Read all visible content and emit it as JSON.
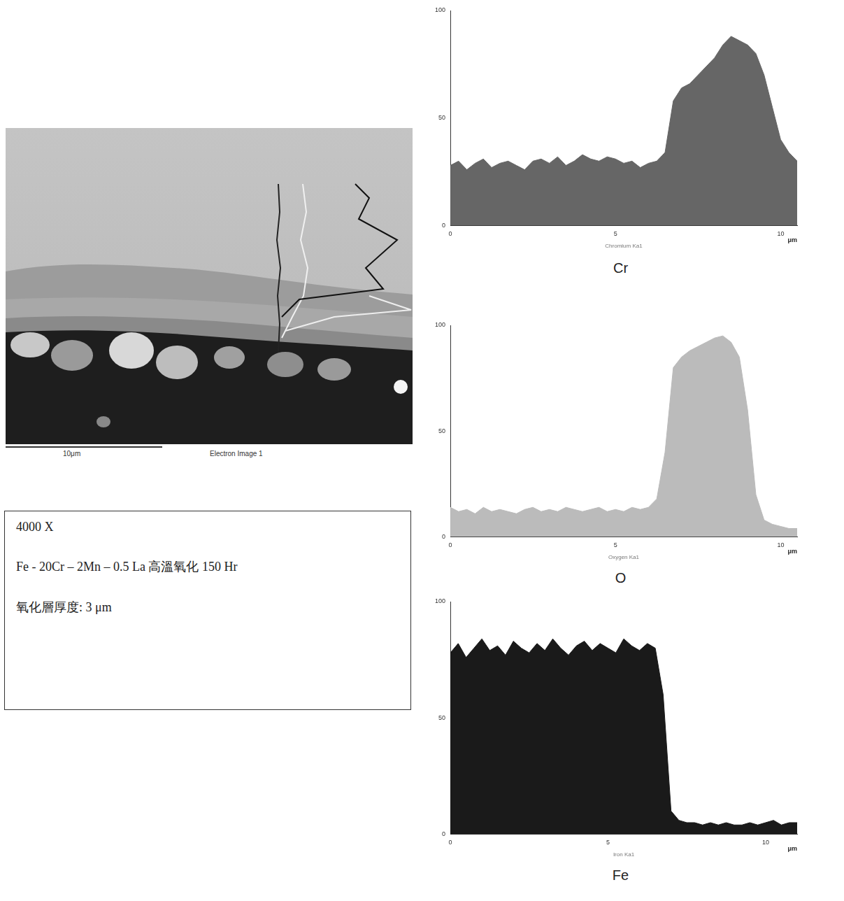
{
  "image": {
    "scale_bar": "10μm",
    "caption": "Electron Image 1"
  },
  "info": {
    "lines": [
      "4000 X",
      "Fe - 20Cr – 2Mn – 0.5 La 高溫氧化 150 Hr",
      "氧化層厚度: 3 μm"
    ]
  },
  "chart_data": [
    {
      "type": "area",
      "title": "Cr",
      "x_label": "Chromium Ka1",
      "x_unit": "μm",
      "color": "#666666",
      "grid": false,
      "x": [
        0,
        0.25,
        0.5,
        0.75,
        1,
        1.25,
        1.5,
        1.75,
        2,
        2.25,
        2.5,
        2.75,
        3,
        3.25,
        3.5,
        3.75,
        4,
        4.25,
        4.5,
        4.75,
        5,
        5.25,
        5.5,
        5.75,
        6,
        6.25,
        6.5,
        6.75,
        7,
        7.25,
        7.5,
        7.75,
        8,
        8.25,
        8.5,
        8.75,
        9,
        9.25,
        9.5,
        9.75,
        10,
        10.25,
        10.5
      ],
      "values": [
        28,
        30,
        26,
        29,
        31,
        27,
        29,
        30,
        28,
        26,
        30,
        31,
        29,
        32,
        28,
        30,
        33,
        31,
        30,
        32,
        31,
        29,
        30,
        27,
        29,
        30,
        34,
        58,
        64,
        66,
        70,
        74,
        78,
        84,
        88,
        86,
        84,
        80,
        70,
        55,
        40,
        34,
        30
      ],
      "xlim": [
        0,
        10.5
      ],
      "xticks": [
        0,
        5,
        10
      ],
      "ylim": [
        0,
        100
      ],
      "yticks": [
        0,
        50,
        100
      ]
    },
    {
      "type": "area",
      "title": "O",
      "x_label": "Oxygen Ka1",
      "x_unit": "μm",
      "color": "#bbbbbb",
      "grid": false,
      "x": [
        0,
        0.25,
        0.5,
        0.75,
        1,
        1.25,
        1.5,
        1.75,
        2,
        2.25,
        2.5,
        2.75,
        3,
        3.25,
        3.5,
        3.75,
        4,
        4.25,
        4.5,
        4.75,
        5,
        5.25,
        5.5,
        5.75,
        6,
        6.25,
        6.5,
        6.75,
        7,
        7.25,
        7.5,
        7.75,
        8,
        8.25,
        8.5,
        8.75,
        9,
        9.25,
        9.5,
        9.75,
        10,
        10.25,
        10.5
      ],
      "values": [
        14,
        12,
        13,
        11,
        14,
        12,
        13,
        12,
        11,
        13,
        14,
        12,
        13,
        12,
        14,
        13,
        12,
        13,
        14,
        12,
        13,
        12,
        14,
        13,
        14,
        18,
        40,
        80,
        85,
        88,
        90,
        92,
        94,
        95,
        92,
        85,
        60,
        20,
        8,
        6,
        5,
        4,
        4
      ],
      "xlim": [
        0,
        10.5
      ],
      "xticks": [
        0,
        5,
        10
      ],
      "ylim": [
        0,
        100
      ],
      "yticks": [
        0,
        50,
        100
      ]
    },
    {
      "type": "area",
      "title": "Fe",
      "x_label": "Iron Ka1",
      "x_unit": "μm",
      "color": "#1a1a1a",
      "grid": false,
      "x": [
        0,
        0.25,
        0.5,
        0.75,
        1,
        1.25,
        1.5,
        1.75,
        2,
        2.25,
        2.5,
        2.75,
        3,
        3.25,
        3.5,
        3.75,
        4,
        4.25,
        4.5,
        4.75,
        5,
        5.25,
        5.5,
        5.75,
        6,
        6.25,
        6.5,
        6.75,
        7,
        7.25,
        7.5,
        7.75,
        8,
        8.25,
        8.5,
        8.75,
        9,
        9.25,
        9.5,
        9.75,
        10,
        10.25,
        10.5,
        10.75,
        11
      ],
      "values": [
        78,
        82,
        76,
        80,
        84,
        79,
        81,
        77,
        83,
        80,
        78,
        82,
        79,
        84,
        80,
        77,
        81,
        83,
        79,
        82,
        80,
        78,
        84,
        81,
        79,
        82,
        80,
        60,
        10,
        6,
        5,
        5,
        4,
        5,
        4,
        5,
        4,
        4,
        5,
        4,
        5,
        6,
        4,
        5,
        5
      ],
      "xlim": [
        0,
        11
      ],
      "xticks": [
        0,
        5,
        10
      ],
      "ylim": [
        0,
        100
      ],
      "yticks": [
        0,
        50,
        100
      ]
    }
  ]
}
